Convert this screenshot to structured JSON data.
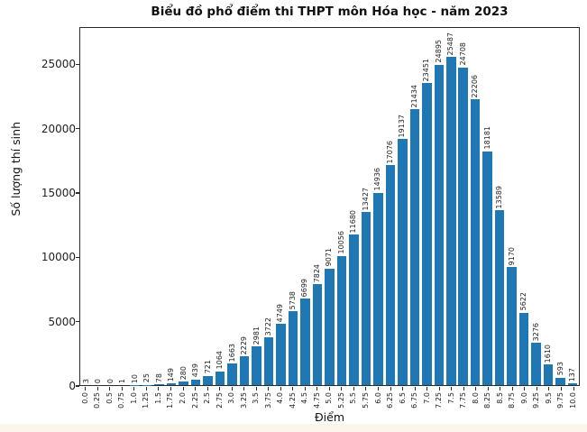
{
  "chart_data": {
    "type": "bar",
    "title": "Biểu đồ phổ điểm thi THPT môn Hóa học - năm 2023",
    "xlabel": "Điểm",
    "ylabel": "Số lượng thí sinh",
    "categories": [
      "0.0",
      "0.25",
      "0.5",
      "0.75",
      "1.0",
      "1.25",
      "1.5",
      "1.75",
      "2.0",
      "2.25",
      "2.5",
      "2.75",
      "3.0",
      "3.25",
      "3.5",
      "3.75",
      "4.0",
      "4.25",
      "4.5",
      "4.75",
      "5.0",
      "5.25",
      "5.5",
      "5.75",
      "6.0",
      "6.25",
      "6.5",
      "6.75",
      "7.0",
      "7.25",
      "7.5",
      "7.75",
      "8.0",
      "8.25",
      "8.5",
      "8.75",
      "9.0",
      "9.25",
      "9.5",
      "9.75",
      "10.0"
    ],
    "values": [
      3,
      0,
      0,
      1,
      10,
      25,
      78,
      149,
      280,
      439,
      721,
      1064,
      1663,
      2229,
      2981,
      3722,
      4749,
      5738,
      6699,
      7824,
      9071,
      10056,
      11680,
      13427,
      14936,
      17076,
      19137,
      21434,
      23451,
      24895,
      25487,
      24708,
      22206,
      18181,
      13589,
      9170,
      5622,
      3276,
      1610,
      593,
      137
    ],
    "yticks": [
      0,
      5000,
      10000,
      15000,
      20000,
      25000
    ],
    "ylim": [
      0,
      27900
    ],
    "bar_color": "#1f77b4",
    "grid": false,
    "legend": "none",
    "bar_label_rotation": 90,
    "xtick_rotation": 90
  },
  "page": {
    "bottom_strip_color": "#fbf5ec"
  }
}
